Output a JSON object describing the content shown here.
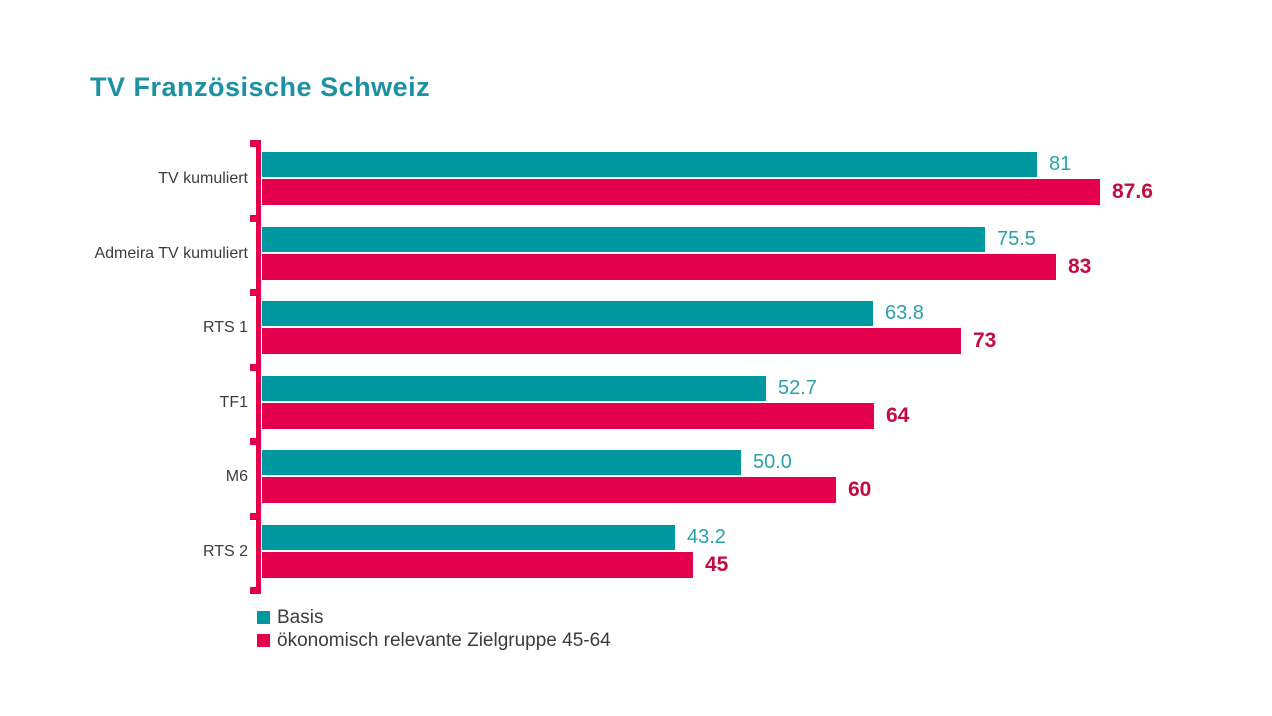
{
  "title": "TV Französische Schweiz",
  "colors": {
    "title": "#1B91A3",
    "teal_bar": "#0098A0",
    "crimson_bar": "#E4004C",
    "teal_value_label": "#2AA2AB",
    "crimson_value_label": "#C30B40",
    "axis": "#E4004C",
    "text": "#3C3C3B"
  },
  "chart_data": {
    "type": "bar",
    "orientation": "horizontal",
    "title": "TV Französische Schweiz",
    "xlabel": "",
    "ylabel": "",
    "xlim": [
      0,
      100
    ],
    "grid": false,
    "value_axis_labels_visible": false,
    "legend_position": "bottom-left",
    "categories": [
      "TV kumuliert",
      "Admeira TV kumuliert",
      "RTS 1",
      "TF1",
      "M6",
      "RTS 2"
    ],
    "series": [
      {
        "name": "Basis",
        "key": "basis",
        "color": "#0098A0",
        "values": [
          81,
          75.5,
          63.8,
          52.7,
          50.0,
          43.2
        ],
        "value_labels": [
          "81",
          "75.5",
          "63.8",
          "52.7",
          "50.0",
          "43.2"
        ]
      },
      {
        "name": "ökonomisch relevante Zielgruppe 45-64",
        "key": "ziel",
        "color": "#E4004C",
        "values": [
          87.6,
          83,
          73,
          64,
          60,
          45
        ],
        "value_labels": [
          "87.6",
          "83",
          "73",
          "64",
          "60",
          "45"
        ]
      }
    ]
  },
  "legend": {
    "items": [
      {
        "label": "Basis",
        "key": "basis",
        "color": "#0098A0"
      },
      {
        "label": "ökonomisch relevante Zielgruppe 45-64",
        "key": "ziel",
        "color": "#E4004C"
      }
    ]
  }
}
